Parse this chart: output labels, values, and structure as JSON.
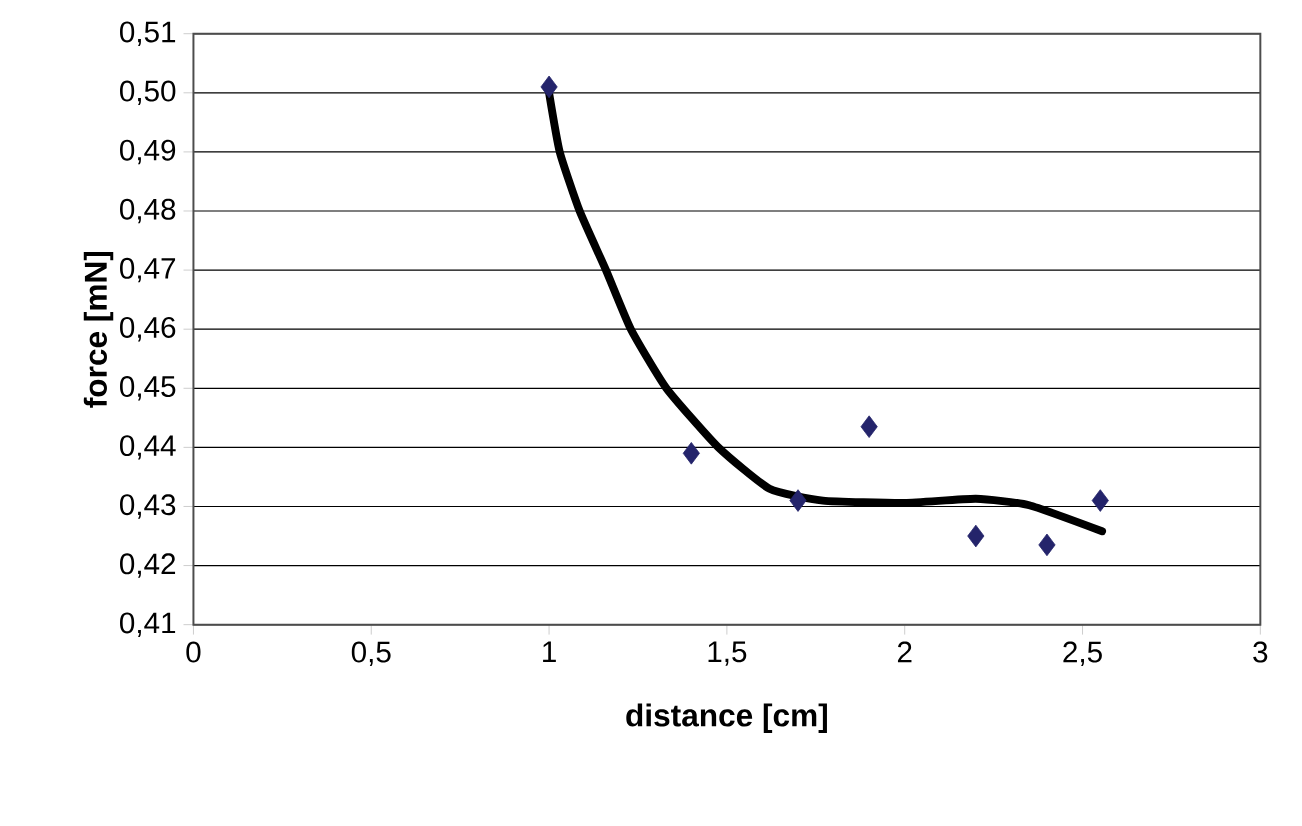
{
  "chart_data": {
    "type": "scatter",
    "xlabel": "distance [cm]",
    "ylabel": "force  [mN]",
    "xlim": [
      0,
      3
    ],
    "ylim": [
      0.41,
      0.51
    ],
    "xticks": [
      0,
      {
        "value": 0.5,
        "label": "0,5"
      },
      1,
      {
        "value": 1.5,
        "label": "1,5"
      },
      2,
      {
        "value": 2.5,
        "label": "2,5"
      },
      3
    ],
    "yticks": [
      {
        "value": 0.41,
        "label": "0,41"
      },
      {
        "value": 0.42,
        "label": "0,42"
      },
      {
        "value": 0.43,
        "label": "0,43"
      },
      {
        "value": 0.44,
        "label": "0,44"
      },
      {
        "value": 0.45,
        "label": "0,45"
      },
      {
        "value": 0.46,
        "label": "0,46"
      },
      {
        "value": 0.47,
        "label": "0,47"
      },
      {
        "value": 0.48,
        "label": "0,48"
      },
      {
        "value": 0.49,
        "label": "0,49"
      },
      {
        "value": 0.5,
        "label": "0,50"
      },
      {
        "value": 0.51,
        "label": "0,51"
      }
    ],
    "grid": "y",
    "series": [
      {
        "marker": "diamond",
        "color": "#24246b",
        "x": [
          1,
          1.4,
          1.7,
          1.9,
          2.2,
          2.4,
          2.55
        ],
        "values": [
          0.501,
          0.439,
          0.431,
          0.4435,
          0.425,
          0.4235,
          0.431
        ]
      },
      {
        "type": "line",
        "marker": "none",
        "line_style": "solid",
        "color": "#000000",
        "x": [
          1,
          1.03,
          1.086,
          1.16,
          1.23,
          1.33,
          1.476,
          1.62,
          1.77,
          2.0,
          2.2,
          2.35,
          2.555
        ],
        "values": [
          0.5,
          0.49,
          0.48,
          0.47,
          0.46,
          0.45,
          0.44,
          0.433,
          0.431,
          0.4306,
          0.4313,
          0.4302,
          0.4258
        ]
      }
    ]
  }
}
